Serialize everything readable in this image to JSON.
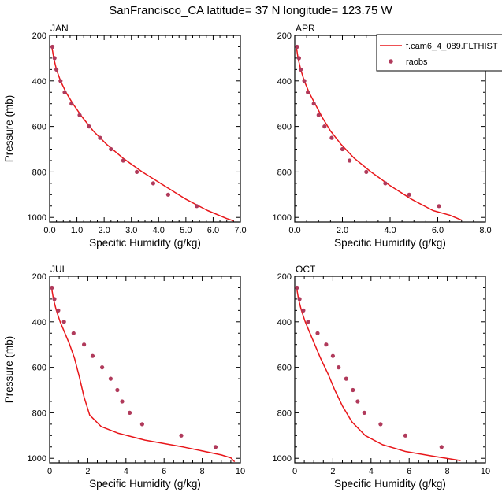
{
  "title": "SanFrancisco_CA  latitude= 37 N longitude= 123.75 W",
  "legend": {
    "line_label": "f.cam6_4_089.FLTHIST",
    "dot_label": "raobs"
  },
  "colors": {
    "model": "#e8161a",
    "raobs": "#b03a5b"
  },
  "chart_data": [
    {
      "type": "line",
      "panel": "JAN",
      "title": "JAN",
      "xlabel": "Specific Humidity (g/kg)",
      "ylabel": "Pressure (mb)",
      "xlim": [
        0,
        7
      ],
      "xticks": [
        0,
        1,
        2,
        3,
        4,
        5,
        6,
        7
      ],
      "xtick_labels": [
        "0.0",
        "1.0",
        "2.0",
        "3.0",
        "4.0",
        "5.0",
        "6.0",
        "7.0"
      ],
      "ylim": [
        200,
        1020
      ],
      "yticks": [
        200,
        400,
        600,
        800,
        1000
      ],
      "ytick_labels": [
        "200",
        "400",
        "600",
        "800",
        "1000"
      ],
      "y_inverted": true,
      "series": [
        {
          "name": "f.cam6_4_089.FLTHIST",
          "style": "line",
          "x": [
            0.08,
            0.15,
            0.25,
            0.4,
            0.6,
            0.85,
            1.2,
            1.6,
            2.1,
            2.7,
            3.4,
            4.2,
            5.0,
            5.8,
            6.5,
            6.75
          ],
          "y": [
            250,
            300,
            350,
            400,
            450,
            500,
            560,
            620,
            680,
            740,
            800,
            860,
            920,
            970,
            1005,
            1015
          ]
        },
        {
          "name": "raobs",
          "style": "markers",
          "x": [
            0.1,
            0.18,
            0.25,
            0.4,
            0.55,
            0.8,
            1.1,
            1.45,
            1.85,
            2.25,
            2.7,
            3.2,
            3.8,
            4.35,
            5.4
          ],
          "y": [
            250,
            300,
            350,
            400,
            450,
            500,
            550,
            600,
            650,
            700,
            750,
            800,
            850,
            900,
            950
          ]
        }
      ]
    },
    {
      "type": "line",
      "panel": "APR",
      "title": "APR",
      "xlabel": "Specific Humidity (g/kg)",
      "ylabel": "",
      "xlim": [
        0,
        8
      ],
      "xticks": [
        0,
        2,
        4,
        6,
        8
      ],
      "xtick_labels": [
        "0.0",
        "2.0",
        "4.0",
        "6.0",
        "8.0"
      ],
      "ylim": [
        200,
        1020
      ],
      "yticks": [
        200,
        400,
        600,
        800,
        1000
      ],
      "ytick_labels": [
        "200",
        "400",
        "600",
        "800",
        "1000"
      ],
      "y_inverted": true,
      "series": [
        {
          "name": "f.cam6_4_089.FLTHIST",
          "style": "line",
          "x": [
            0.07,
            0.14,
            0.25,
            0.4,
            0.6,
            0.85,
            1.15,
            1.5,
            1.95,
            2.5,
            3.2,
            4.0,
            4.9,
            5.8,
            6.5,
            7.0
          ],
          "y": [
            250,
            300,
            350,
            400,
            450,
            500,
            560,
            620,
            680,
            740,
            800,
            860,
            920,
            970,
            990,
            1012
          ]
        },
        {
          "name": "raobs",
          "style": "markers",
          "x": [
            0.1,
            0.18,
            0.25,
            0.4,
            0.55,
            0.8,
            1.0,
            1.25,
            1.55,
            2.0,
            2.3,
            3.0,
            3.8,
            4.8,
            6.05
          ],
          "y": [
            250,
            300,
            350,
            400,
            450,
            500,
            550,
            600,
            650,
            700,
            750,
            800,
            850,
            900,
            950
          ]
        }
      ]
    },
    {
      "type": "line",
      "panel": "JUL",
      "title": "JUL",
      "xlabel": "Specific Humidity (g/kg)",
      "ylabel": "Pressure (mb)",
      "xlim": [
        0,
        10
      ],
      "xticks": [
        0,
        2,
        4,
        6,
        8,
        10
      ],
      "xtick_labels": [
        "0",
        "2",
        "4",
        "6",
        "8",
        "10"
      ],
      "ylim": [
        200,
        1020
      ],
      "yticks": [
        200,
        400,
        600,
        800,
        1000
      ],
      "ytick_labels": [
        "200",
        "400",
        "600",
        "800",
        "1000"
      ],
      "y_inverted": true,
      "series": [
        {
          "name": "f.cam6_4_089.FLTHIST",
          "style": "line",
          "x": [
            0.1,
            0.2,
            0.35,
            0.55,
            0.8,
            1.05,
            1.3,
            1.55,
            1.8,
            2.1,
            2.7,
            3.6,
            5.0,
            7.0,
            9.0,
            9.5,
            9.7
          ],
          "y": [
            250,
            300,
            350,
            400,
            450,
            500,
            560,
            640,
            730,
            810,
            860,
            890,
            920,
            950,
            985,
            998,
            1015
          ]
        },
        {
          "name": "raobs",
          "style": "markers",
          "x": [
            0.12,
            0.25,
            0.45,
            0.75,
            1.25,
            1.8,
            2.25,
            2.75,
            3.2,
            3.55,
            3.8,
            4.2,
            4.85,
            6.9,
            8.7
          ],
          "y": [
            250,
            300,
            350,
            400,
            450,
            500,
            550,
            600,
            650,
            700,
            750,
            800,
            850,
            900,
            950
          ]
        }
      ]
    },
    {
      "type": "line",
      "panel": "OCT",
      "title": "OCT",
      "xlabel": "Specific Humidity (g/kg)",
      "ylabel": "",
      "xlim": [
        0,
        10
      ],
      "xticks": [
        0,
        2,
        4,
        6,
        8,
        10
      ],
      "xtick_labels": [
        "0",
        "2",
        "4",
        "6",
        "8",
        "10"
      ],
      "ylim": [
        200,
        1020
      ],
      "yticks": [
        200,
        400,
        600,
        800,
        1000
      ],
      "ytick_labels": [
        "200",
        "400",
        "600",
        "800",
        "1000"
      ],
      "y_inverted": true,
      "series": [
        {
          "name": "f.cam6_4_089.FLTHIST",
          "style": "line",
          "x": [
            0.1,
            0.2,
            0.35,
            0.55,
            0.8,
            1.05,
            1.35,
            1.75,
            2.1,
            2.5,
            3.0,
            3.7,
            4.6,
            5.8,
            7.2,
            8.7
          ],
          "y": [
            250,
            300,
            350,
            400,
            450,
            500,
            560,
            630,
            700,
            770,
            840,
            900,
            940,
            970,
            990,
            1010
          ]
        },
        {
          "name": "raobs",
          "style": "markers",
          "x": [
            0.12,
            0.25,
            0.45,
            0.7,
            1.2,
            1.65,
            2.0,
            2.3,
            2.7,
            3.05,
            3.3,
            3.65,
            4.5,
            5.8,
            7.7
          ],
          "y": [
            250,
            300,
            350,
            400,
            450,
            500,
            550,
            600,
            650,
            700,
            750,
            800,
            850,
            900,
            950
          ]
        }
      ]
    }
  ]
}
